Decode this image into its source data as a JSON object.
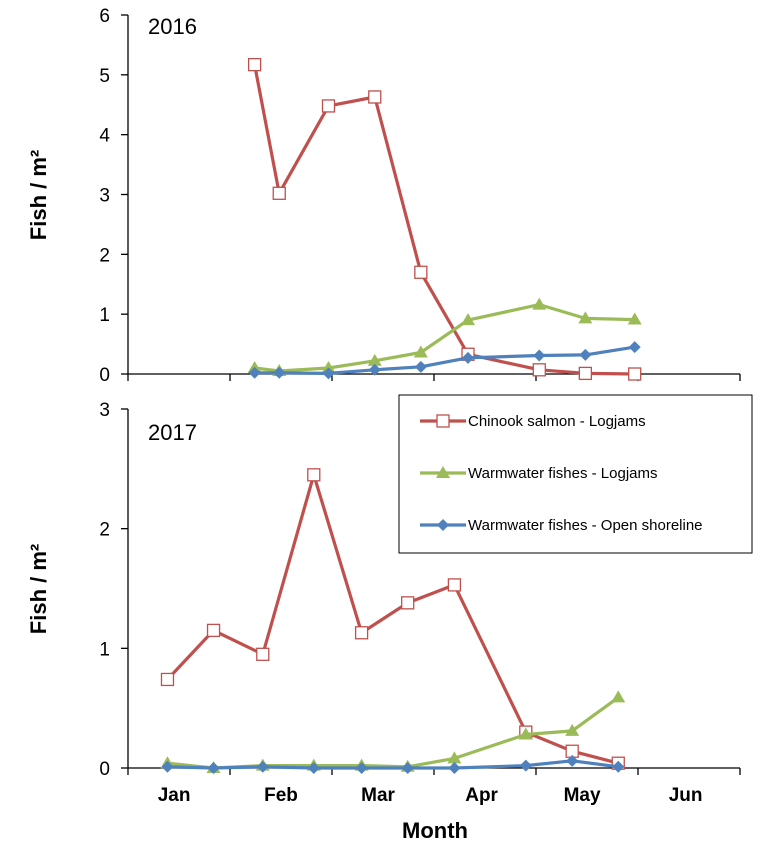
{
  "chart_data": [
    {
      "type": "line",
      "year_label": "2016",
      "ylabel": "Fish / m²",
      "xlabel": "",
      "ylim": [
        0,
        6
      ],
      "yticks": [
        "0",
        "1",
        "2",
        "3",
        "4",
        "5",
        "6"
      ],
      "grid": false,
      "series": [
        {
          "name": "Chinook salmon - Logjams",
          "marker": "open-square",
          "color": "#C0504D",
          "x": [
            "2016-02-08",
            "2016-02-15",
            "2016-02-29",
            "2016-03-14",
            "2016-03-28",
            "2016-04-11",
            "2016-05-02",
            "2016-05-16",
            "2016-05-31"
          ],
          "y": [
            5.17,
            3.02,
            4.48,
            4.63,
            1.7,
            0.33,
            0.07,
            0.01,
            0.0
          ]
        },
        {
          "name": "Warmwater fishes - Logjams",
          "marker": "triangle",
          "color": "#9BBB59",
          "x": [
            "2016-02-08",
            "2016-02-15",
            "2016-02-29",
            "2016-03-14",
            "2016-03-28",
            "2016-04-11",
            "2016-05-02",
            "2016-05-16",
            "2016-05-31"
          ],
          "y": [
            0.1,
            0.05,
            0.1,
            0.22,
            0.36,
            0.9,
            1.16,
            0.93,
            0.91
          ]
        },
        {
          "name": "Warmwater fishes - Open shoreline",
          "marker": "diamond",
          "color": "#4F81BD",
          "x": [
            "2016-02-08",
            "2016-02-15",
            "2016-02-29",
            "2016-03-14",
            "2016-03-28",
            "2016-04-11",
            "2016-05-02",
            "2016-05-16",
            "2016-05-31"
          ],
          "y": [
            0.02,
            0.02,
            0.01,
            0.07,
            0.12,
            0.27,
            0.31,
            0.32,
            0.45
          ]
        }
      ]
    },
    {
      "type": "line",
      "year_label": "2017",
      "ylabel": "Fish / m²",
      "xlabel": "Month",
      "ylim": [
        0,
        3
      ],
      "yticks": [
        "0",
        "1",
        "2",
        "3"
      ],
      "grid": false,
      "legend_position": "top-right",
      "series": [
        {
          "name": "Chinook salmon - Logjams",
          "marker": "open-square",
          "color": "#C0504D",
          "x": [
            "2017-01-13",
            "2017-01-27",
            "2017-02-10",
            "2017-02-24",
            "2017-03-10",
            "2017-03-24",
            "2017-04-07",
            "2017-04-28",
            "2017-05-12",
            "2017-05-26"
          ],
          "y": [
            0.74,
            1.15,
            0.95,
            2.45,
            1.13,
            1.38,
            1.53,
            0.3,
            0.14,
            0.04
          ]
        },
        {
          "name": "Warmwater fishes - Logjams",
          "marker": "triangle",
          "color": "#9BBB59",
          "x": [
            "2017-01-13",
            "2017-01-27",
            "2017-02-10",
            "2017-02-24",
            "2017-03-10",
            "2017-03-24",
            "2017-04-07",
            "2017-04-28",
            "2017-05-12",
            "2017-05-26"
          ],
          "y": [
            0.04,
            0.0,
            0.02,
            0.02,
            0.02,
            0.01,
            0.08,
            0.28,
            0.31,
            0.59
          ]
        },
        {
          "name": "Warmwater fishes - Open shoreline",
          "marker": "diamond",
          "color": "#4F81BD",
          "x": [
            "2017-01-13",
            "2017-01-27",
            "2017-02-10",
            "2017-02-24",
            "2017-03-10",
            "2017-03-24",
            "2017-04-07",
            "2017-04-28",
            "2017-05-12",
            "2017-05-26"
          ],
          "y": [
            0.01,
            0.0,
            0.01,
            0.0,
            0.0,
            0.0,
            0.0,
            0.02,
            0.06,
            0.01
          ]
        }
      ]
    }
  ],
  "x_axis": {
    "label": "Month",
    "xlim": [
      "2016-12-31",
      "2017-06-30"
    ],
    "months": [
      {
        "label": "Jan",
        "date": "2017-01-15"
      },
      {
        "label": "Feb",
        "date": "2017-02-15"
      },
      {
        "label": "Mar",
        "date": "2017-03-15"
      },
      {
        "label": "Apr",
        "date": "2017-04-15"
      },
      {
        "label": "May",
        "date": "2017-05-15"
      },
      {
        "label": "Jun",
        "date": "2017-06-15"
      }
    ]
  },
  "legend": {
    "entries": [
      "Chinook salmon - Logjams",
      "Warmwater fishes - Logjams",
      "Warmwater fishes - Open shoreline"
    ]
  }
}
